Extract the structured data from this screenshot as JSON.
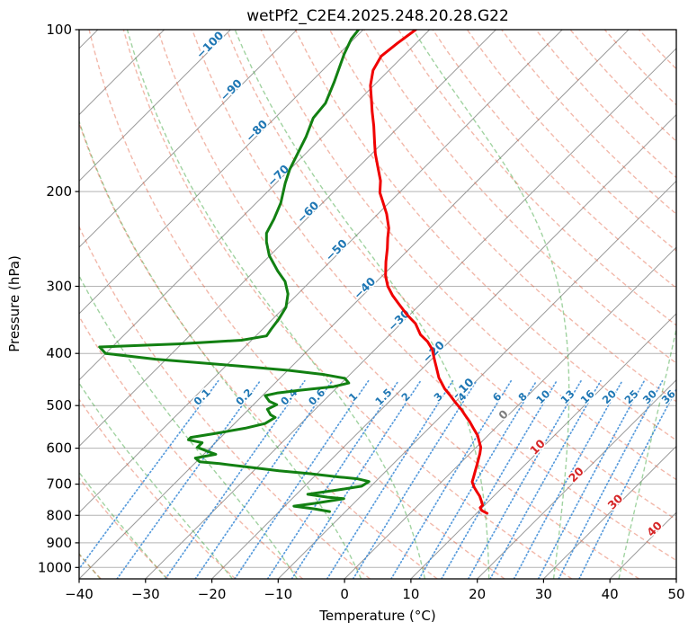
{
  "title": "wetPf2_C2E4.2025.248.20.28.G22",
  "axes": {
    "x": {
      "label": "Temperature (°C)",
      "min": -40,
      "max": 50,
      "ticks": [
        {
          "v": -40,
          "label": "−40"
        },
        {
          "v": -30,
          "label": "−30"
        },
        {
          "v": -20,
          "label": "−20"
        },
        {
          "v": -10,
          "label": "−10"
        },
        {
          "v": 0,
          "label": "0"
        },
        {
          "v": 10,
          "label": "10"
        },
        {
          "v": 20,
          "label": "20"
        },
        {
          "v": 30,
          "label": "30"
        },
        {
          "v": 40,
          "label": "40"
        },
        {
          "v": 50,
          "label": "50"
        }
      ]
    },
    "y": {
      "label": "Pressure (hPa)",
      "scale": "log",
      "min": 100,
      "max": 1050,
      "ticks": [
        {
          "v": 100,
          "label": "100"
        },
        {
          "v": 200,
          "label": "200"
        },
        {
          "v": 300,
          "label": "300"
        },
        {
          "v": 400,
          "label": "400"
        },
        {
          "v": 500,
          "label": "500"
        },
        {
          "v": 600,
          "label": "600"
        },
        {
          "v": 700,
          "label": "700"
        },
        {
          "v": 800,
          "label": "800"
        },
        {
          "v": 900,
          "label": "900"
        },
        {
          "v": 1000,
          "label": "1000"
        }
      ]
    }
  },
  "chart_data": {
    "type": "line",
    "variant": "skewT-logP",
    "skew_slope_deg": 45,
    "grid": {
      "isobars_hpa": [
        100,
        200,
        300,
        400,
        500,
        600,
        700,
        800,
        900,
        1000
      ],
      "color": "#b3b3b3"
    },
    "isotherms": {
      "t_min": -160,
      "t_max": 50,
      "step": 10,
      "color": "#999999",
      "labels": [
        {
          "t": -100,
          "label": "−100",
          "p": 108,
          "color": "#1f77b4"
        },
        {
          "t": -90,
          "label": "−90",
          "p": 131,
          "color": "#1f77b4"
        },
        {
          "t": -80,
          "label": "−80",
          "p": 156,
          "color": "#1f77b4"
        },
        {
          "t": -70,
          "label": "−70",
          "p": 189,
          "color": "#1f77b4"
        },
        {
          "t": -60,
          "label": "−60",
          "p": 221,
          "color": "#1f77b4"
        },
        {
          "t": -50,
          "label": "−50",
          "p": 260,
          "color": "#1f77b4"
        },
        {
          "t": -40,
          "label": "−40",
          "p": 306,
          "color": "#1f77b4"
        },
        {
          "t": -30,
          "label": "−30",
          "p": 351,
          "color": "#1f77b4"
        },
        {
          "t": -20,
          "label": "−20",
          "p": 402,
          "color": "#1f77b4"
        },
        {
          "t": -10,
          "label": "−10",
          "p": 471,
          "color": "#1f77b4"
        },
        {
          "t": 0,
          "label": "0",
          "p": 526,
          "color": "#7f7f7f"
        },
        {
          "t": 10,
          "label": "10",
          "p": 604,
          "color": "#d62728"
        },
        {
          "t": 20,
          "label": "20",
          "p": 680,
          "color": "#d62728"
        },
        {
          "t": 30,
          "label": "30",
          "p": 764,
          "color": "#d62728"
        },
        {
          "t": 40,
          "label": "40",
          "p": 858,
          "color": "#d62728"
        }
      ]
    },
    "dry_adiabats": {
      "theta_min": -40,
      "theta_max": 190,
      "step": 10,
      "color": "#e05535",
      "opacity": 0.42,
      "style": "dashed"
    },
    "moist_adiabats": {
      "tw_min": -40,
      "tw_max": 50,
      "step": 10,
      "color": "#2f9e2f",
      "opacity": 0.45,
      "style": "dashed"
    },
    "mixing_ratio": {
      "values_g_kg": [
        0.1,
        0.2,
        0.4,
        0.6,
        1,
        1.5,
        2,
        3,
        4,
        6,
        8,
        10,
        13,
        16,
        20,
        25,
        30,
        36
      ],
      "labels": [
        "0.1",
        "0.2",
        "0.4",
        "0.6",
        "1",
        "1.5",
        "2",
        "3",
        "4",
        "6",
        "8",
        "10",
        "13",
        "16",
        "20",
        "25",
        "30",
        "36"
      ],
      "top_pressure": 450,
      "label_pressure": 487,
      "line_color": "#3a8ad6",
      "line_opacity": 0.85,
      "label_color": "#1f77b4",
      "style": "dotted"
    },
    "series": [
      {
        "name": "temperature",
        "color": "#f00000",
        "width": 3,
        "points": [
          [
            100,
            -72.1
          ],
          [
            106,
            -72.8
          ],
          [
            112,
            -73.3
          ],
          [
            119,
            -72.4
          ],
          [
            127,
            -70.5
          ],
          [
            135,
            -68.2
          ],
          [
            142,
            -66.3
          ],
          [
            151,
            -63.9
          ],
          [
            162,
            -61.3
          ],
          [
            170,
            -59.5
          ],
          [
            180,
            -57.1
          ],
          [
            191,
            -54.6
          ],
          [
            201,
            -52.9
          ],
          [
            208,
            -51.3
          ],
          [
            220,
            -48.7
          ],
          [
            234,
            -46.2
          ],
          [
            244,
            -44.9
          ],
          [
            255,
            -43.4
          ],
          [
            270,
            -41.6
          ],
          [
            287,
            -39.5
          ],
          [
            300,
            -37.6
          ],
          [
            312,
            -35.5
          ],
          [
            324,
            -33.2
          ],
          [
            339,
            -30.4
          ],
          [
            352,
            -27.8
          ],
          [
            369,
            -25.4
          ],
          [
            380,
            -23.3
          ],
          [
            393,
            -21.4
          ],
          [
            409,
            -19.7
          ],
          [
            425,
            -18.0
          ],
          [
            444,
            -16.1
          ],
          [
            454,
            -14.9
          ],
          [
            465,
            -13.6
          ],
          [
            479,
            -11.7
          ],
          [
            494,
            -9.8
          ],
          [
            508,
            -8.0
          ],
          [
            522,
            -6.4
          ],
          [
            536,
            -4.8
          ],
          [
            551,
            -3.3
          ],
          [
            568,
            -1.6
          ],
          [
            586,
            -0.2
          ],
          [
            598,
            0.7
          ],
          [
            614,
            1.5
          ],
          [
            626,
            2.0
          ],
          [
            643,
            2.7
          ],
          [
            661,
            3.4
          ],
          [
            679,
            4.1
          ],
          [
            693,
            4.6
          ],
          [
            709,
            5.7
          ],
          [
            723,
            6.8
          ],
          [
            737,
            7.9
          ],
          [
            751,
            8.8
          ],
          [
            766,
            9.7
          ],
          [
            774,
            9.7
          ],
          [
            784,
            10.4
          ],
          [
            793,
            11.6
          ]
        ]
      },
      {
        "name": "dewpoint",
        "color": "#128012",
        "width": 3,
        "points": [
          [
            100,
            -80.7
          ],
          [
            104,
            -80.4
          ],
          [
            111,
            -79.2
          ],
          [
            125,
            -76.5
          ],
          [
            137,
            -74.6
          ],
          [
            146,
            -74.2
          ],
          [
            158,
            -72.5
          ],
          [
            170,
            -71.2
          ],
          [
            182,
            -70.0
          ],
          [
            193,
            -68.6
          ],
          [
            210,
            -66.3
          ],
          [
            225,
            -64.9
          ],
          [
            239,
            -63.9
          ],
          [
            248,
            -62.6
          ],
          [
            263,
            -60.1
          ],
          [
            281,
            -56.5
          ],
          [
            294,
            -53.8
          ],
          [
            310,
            -51.5
          ],
          [
            328,
            -49.8
          ],
          [
            345,
            -49.1
          ],
          [
            361,
            -48.7
          ],
          [
            371,
            -48.4
          ],
          [
            378,
            -51.5
          ],
          [
            384,
            -60.5
          ],
          [
            389,
            -71.9
          ],
          [
            400,
            -70.0
          ],
          [
            410,
            -61.6
          ],
          [
            422,
            -48.1
          ],
          [
            430,
            -39.9
          ],
          [
            438,
            -33.8
          ],
          [
            445,
            -30.2
          ],
          [
            454,
            -28.9
          ],
          [
            461,
            -30.6
          ],
          [
            468,
            -35.0
          ],
          [
            474,
            -38.2
          ],
          [
            479,
            -39.6
          ],
          [
            491,
            -38.1
          ],
          [
            498,
            -36.5
          ],
          [
            508,
            -37.2
          ],
          [
            520,
            -35.9
          ],
          [
            526,
            -34.8
          ],
          [
            540,
            -35.4
          ],
          [
            551,
            -37.7
          ],
          [
            564,
            -41.6
          ],
          [
            573,
            -44.5
          ],
          [
            579,
            -44.5
          ],
          [
            586,
            -42.0
          ],
          [
            598,
            -42.0
          ],
          [
            612,
            -39.1
          ],
          [
            616,
            -38.2
          ],
          [
            626,
            -40.7
          ],
          [
            636,
            -39.5
          ],
          [
            641,
            -36.2
          ],
          [
            651,
            -31.2
          ],
          [
            661,
            -26.2
          ],
          [
            669,
            -21.2
          ],
          [
            679,
            -16.1
          ],
          [
            684,
            -13.2
          ],
          [
            692,
            -11.0
          ],
          [
            706,
            -11.4
          ],
          [
            717,
            -14.3
          ],
          [
            731,
            -18.3
          ],
          [
            740,
            -14.9
          ],
          [
            745,
            -12.2
          ],
          [
            760,
            -15.9
          ],
          [
            769,
            -18.6
          ],
          [
            778,
            -15.1
          ],
          [
            787,
            -12.4
          ]
        ]
      }
    ]
  }
}
